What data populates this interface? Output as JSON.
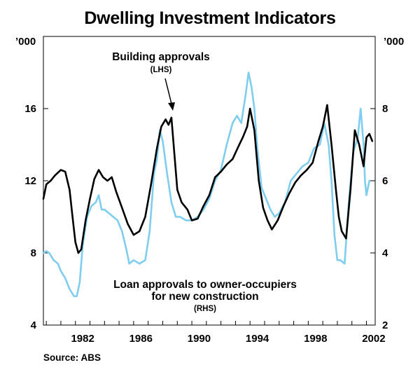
{
  "title": "Dwelling Investment Indicators",
  "source": "Source: ABS",
  "colors": {
    "building": "#000000",
    "loans": "#7fcdef",
    "axis": "#000000"
  },
  "chart_data": {
    "type": "line",
    "title": "Dwelling Investment Indicators",
    "x_ticks": [
      "1982",
      "1986",
      "1990",
      "1994",
      "1998",
      "2002"
    ],
    "xlim": [
      1979.8,
      2002.6
    ],
    "left_axis": {
      "unit": "’000",
      "ticks": [
        "4",
        "8",
        "12",
        "16"
      ],
      "ylim": [
        4,
        20
      ]
    },
    "right_axis": {
      "unit": "’000",
      "ticks": [
        "2",
        "4",
        "6",
        "8"
      ],
      "ylim": [
        2,
        10
      ]
    },
    "annotations": {
      "building_title": "Building approvals",
      "building_axis": "(LHS)",
      "loans_line1": "Loan approvals to owner-occupiers",
      "loans_line2": "for new construction",
      "loans_axis": "(RHS)"
    },
    "series": [
      {
        "name": "Building approvals",
        "axis": "left",
        "unit": "’000",
        "x": [
          1979.8,
          1980.0,
          1980.3,
          1980.6,
          1981.0,
          1981.3,
          1981.6,
          1981.8,
          1982.0,
          1982.2,
          1982.4,
          1982.7,
          1983.0,
          1983.3,
          1983.6,
          1983.9,
          1984.2,
          1984.5,
          1984.8,
          1985.2,
          1985.6,
          1986.0,
          1986.4,
          1986.8,
          1987.2,
          1987.6,
          1987.9,
          1988.2,
          1988.4,
          1988.6,
          1988.8,
          1989.0,
          1989.3,
          1989.7,
          1990.0,
          1990.4,
          1990.8,
          1991.2,
          1991.6,
          1992.0,
          1992.4,
          1992.8,
          1993.2,
          1993.5,
          1993.8,
          1994.0,
          1994.3,
          1994.6,
          1994.9,
          1995.2,
          1995.5,
          1995.9,
          1996.3,
          1996.7,
          1997.1,
          1997.5,
          1997.9,
          1998.3,
          1998.7,
          1999.0,
          1999.3,
          1999.6,
          1999.9,
          2000.1,
          2000.3,
          2000.6,
          2000.9,
          2001.2,
          2001.5,
          2001.8,
          2002.0,
          2002.2,
          2002.4
        ],
        "values": [
          11.0,
          11.8,
          12.0,
          12.3,
          12.6,
          12.5,
          11.5,
          10.0,
          8.6,
          8.0,
          8.2,
          9.8,
          11.0,
          12.1,
          12.6,
          12.2,
          12.0,
          12.2,
          11.4,
          10.5,
          9.6,
          9.0,
          9.2,
          10.0,
          11.8,
          13.8,
          15.0,
          15.4,
          15.1,
          15.5,
          13.5,
          11.5,
          10.8,
          10.4,
          9.8,
          9.9,
          10.6,
          11.2,
          12.2,
          12.5,
          12.9,
          13.2,
          13.9,
          14.4,
          15.0,
          16.0,
          14.8,
          12.0,
          10.5,
          9.8,
          9.3,
          9.8,
          10.6,
          11.3,
          11.9,
          12.3,
          12.6,
          13.0,
          14.2,
          15.0,
          16.2,
          14.0,
          11.5,
          10.0,
          9.2,
          8.8,
          11.5,
          14.8,
          14.0,
          12.8,
          14.4,
          14.6,
          14.2
        ]
      },
      {
        "name": "Loan approvals to owner-occupiers for new construction",
        "axis": "right",
        "unit": "’000",
        "x": [
          1979.8,
          1980.0,
          1980.2,
          1980.5,
          1980.8,
          1981.0,
          1981.3,
          1981.6,
          1981.9,
          1982.1,
          1982.3,
          1982.5,
          1982.8,
          1983.1,
          1983.4,
          1983.6,
          1983.8,
          1984.0,
          1984.3,
          1984.6,
          1984.9,
          1985.2,
          1985.5,
          1985.7,
          1986.0,
          1986.4,
          1986.8,
          1987.1,
          1987.4,
          1987.6,
          1987.8,
          1988.0,
          1988.3,
          1988.6,
          1988.9,
          1989.2,
          1989.6,
          1990.0,
          1990.4,
          1990.8,
          1991.2,
          1991.6,
          1992.0,
          1992.4,
          1992.8,
          1993.1,
          1993.4,
          1993.7,
          1993.9,
          1994.1,
          1994.3,
          1994.5,
          1994.8,
          1995.1,
          1995.4,
          1995.7,
          1996.0,
          1996.4,
          1996.8,
          1997.2,
          1997.6,
          1998.0,
          1998.4,
          1998.8,
          1999.1,
          1999.4,
          1999.6,
          1999.8,
          2000.0,
          2000.2,
          2000.5,
          2000.8,
          2001.1,
          2001.4,
          2001.6,
          2001.8,
          2001.9,
          2002.0,
          2002.2
        ],
        "values": [
          4.0,
          4.05,
          4.0,
          3.8,
          3.7,
          3.5,
          3.3,
          3.0,
          2.8,
          2.8,
          3.2,
          4.2,
          5.0,
          5.3,
          5.4,
          5.6,
          5.2,
          5.2,
          5.1,
          5.0,
          4.9,
          4.6,
          4.1,
          3.7,
          3.8,
          3.7,
          3.8,
          4.6,
          6.2,
          6.6,
          7.4,
          7.1,
          6.2,
          5.4,
          5.0,
          5.0,
          4.9,
          4.9,
          5.0,
          5.2,
          5.5,
          6.0,
          6.3,
          7.0,
          7.6,
          7.8,
          7.6,
          8.4,
          9.0,
          8.6,
          8.0,
          6.9,
          5.8,
          5.5,
          5.2,
          5.0,
          5.1,
          5.4,
          6.0,
          6.2,
          6.4,
          6.5,
          6.9,
          7.0,
          7.6,
          7.0,
          6.0,
          4.5,
          3.8,
          3.8,
          3.7,
          5.5,
          6.8,
          7.2,
          8.0,
          7.0,
          6.0,
          5.6,
          6.0
        ]
      }
    ]
  }
}
